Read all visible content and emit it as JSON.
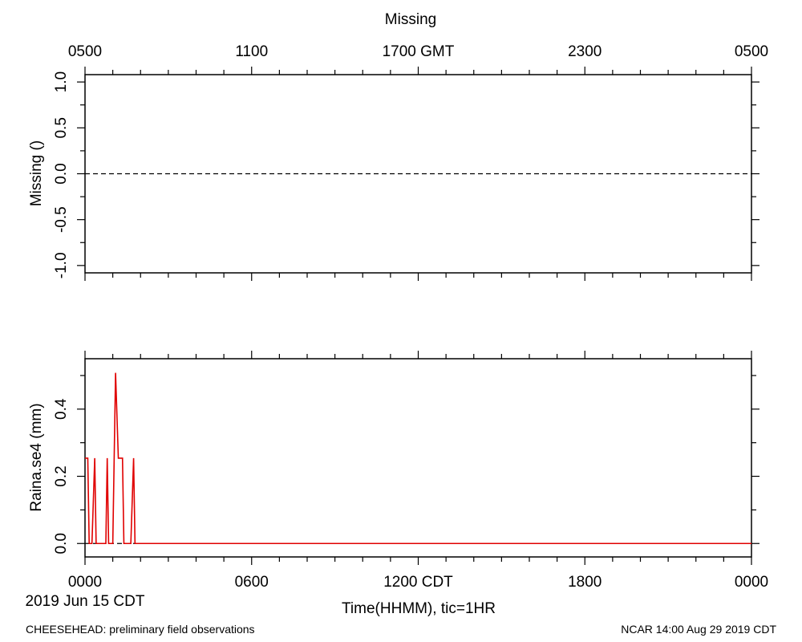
{
  "chart_data": [
    {
      "type": "line",
      "title": "Missing",
      "ylabel": "Missing ()",
      "ylim": [
        -1.08,
        1.08
      ],
      "yticks": [
        "-1.0",
        "-0.5",
        "0.0",
        "0.5",
        "1.0"
      ],
      "top_axis_ticks": [
        "0500",
        "1100",
        "1700 GMT",
        "2300",
        "0500"
      ],
      "reference_line": 0,
      "series": []
    },
    {
      "type": "line",
      "ylabel": "Raina.se4 (mm)",
      "xlabel": "Time(HHMM), tic=1HR",
      "ylim": [
        -0.04,
        0.55
      ],
      "yticks": [
        "0.0",
        "0.2",
        "0.4"
      ],
      "xlim": [
        0,
        24
      ],
      "x_ticks": [
        "0000",
        "0600",
        "1200 CDT",
        "1800",
        "0000"
      ],
      "date_label": "2019 Jun 15 CDT",
      "reference_line": 0,
      "line_color": "#e00000",
      "series": [
        {
          "x": [
            0.0,
            0.1,
            0.15,
            0.2,
            0.25,
            0.35,
            0.4,
            0.45,
            0.5,
            0.75,
            0.8,
            0.85,
            0.9,
            1.0,
            1.05,
            1.1,
            1.2,
            1.3,
            1.35,
            1.4,
            1.45,
            1.55,
            1.6,
            1.65,
            1.75,
            1.8,
            1.85,
            24.0
          ],
          "y": [
            0.254,
            0.254,
            0.0,
            0.0,
            0.0,
            0.254,
            0.0,
            0.0,
            0.0,
            0.0,
            0.254,
            0.0,
            0.0,
            0.0,
            0.254,
            0.508,
            0.254,
            0.254,
            0.254,
            0.0,
            0.0,
            0.0,
            0.0,
            0.0,
            0.254,
            0.0,
            0.0,
            0.0
          ]
        }
      ]
    }
  ],
  "footer": {
    "left": "CHEESEHEAD: preliminary field observations",
    "right": "NCAR 14:00 Aug 29 2019 CDT"
  },
  "colors": {
    "axis": "#000000",
    "data_line": "#e00000",
    "reference_line": "#000000"
  }
}
